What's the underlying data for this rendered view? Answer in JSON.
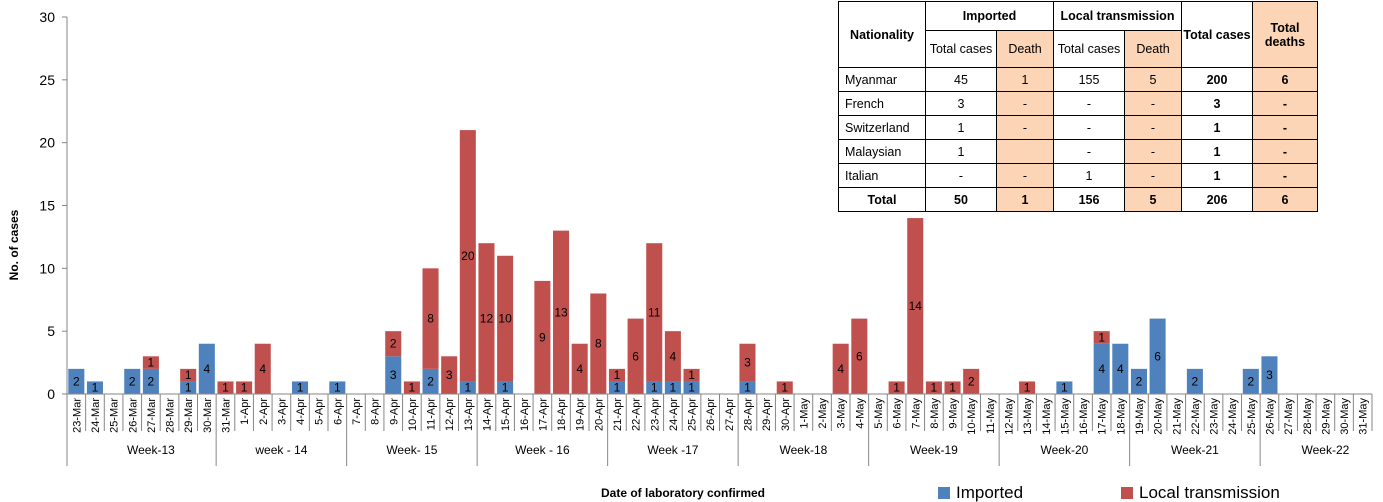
{
  "chart_data": {
    "type": "bar",
    "stacked": true,
    "ylabel": "No. of cases",
    "xlabel": "Date of laboratory confirmed",
    "ylim": [
      0,
      30
    ],
    "yticks": [
      0,
      5,
      10,
      15,
      20,
      25,
      30
    ],
    "grid": false,
    "legend_position": "bottom-right",
    "categories": [
      "23-Mar",
      "24-Mar",
      "25-Mar",
      "26-Mar",
      "27-Mar",
      "28-Mar",
      "29-Mar",
      "30-Mar",
      "31-Mar",
      "1-Apr",
      "2-Apr",
      "3-Apr",
      "4-Apr",
      "5-Apr",
      "6-Apr",
      "7-Apr",
      "8-Apr",
      "9-Apr",
      "10-Apr",
      "11-Apr",
      "12-Apr",
      "13-Apr",
      "14-Apr",
      "15-Apr",
      "16-Apr",
      "17-Apr",
      "18-Apr",
      "19-Apr",
      "20-Apr",
      "21-Apr",
      "22-Apr",
      "23-Apr",
      "24-Apr",
      "25-Apr",
      "26-Apr",
      "27-Apr",
      "28-Apr",
      "29-Apr",
      "30-Apr",
      "1-May",
      "2-May",
      "3-May",
      "4-May",
      "5-May",
      "6-May",
      "7-May",
      "8-May",
      "9-May",
      "10-May",
      "11-May",
      "12-May",
      "13-May",
      "14-May",
      "15-May",
      "16-May",
      "17-May",
      "18-May",
      "19-May",
      "20-May",
      "21-May",
      "22-May",
      "23-May",
      "24-May",
      "25-May",
      "26-May",
      "27-May",
      "28-May",
      "29-May",
      "30-May",
      "31-May"
    ],
    "series": [
      {
        "name": "Imported",
        "color": "#4f81bd",
        "values": [
          2,
          1,
          0,
          2,
          2,
          0,
          1,
          4,
          0,
          0,
          0,
          0,
          1,
          0,
          1,
          0,
          0,
          3,
          0,
          2,
          0,
          1,
          0,
          1,
          0,
          0,
          0,
          0,
          0,
          1,
          0,
          1,
          1,
          1,
          0,
          0,
          1,
          0,
          0,
          0,
          0,
          0,
          0,
          0,
          0,
          0,
          0,
          0,
          0,
          0,
          0,
          0,
          0,
          1,
          0,
          4,
          4,
          2,
          6,
          0,
          2,
          0,
          0,
          2,
          3,
          0,
          0,
          0,
          0,
          0
        ]
      },
      {
        "name": "Local transmission",
        "color": "#c0504d",
        "values": [
          0,
          0,
          0,
          0,
          1,
          0,
          1,
          0,
          1,
          1,
          4,
          0,
          0,
          0,
          0,
          0,
          0,
          2,
          1,
          8,
          3,
          20,
          12,
          10,
          0,
          9,
          13,
          4,
          8,
          1,
          6,
          11,
          4,
          1,
          0,
          0,
          3,
          0,
          1,
          0,
          0,
          4,
          6,
          0,
          1,
          14,
          1,
          1,
          2,
          0,
          0,
          1,
          0,
          0,
          0,
          1,
          0,
          0,
          0,
          0,
          0,
          0,
          0,
          0,
          0,
          0,
          0,
          0,
          0,
          0
        ]
      }
    ],
    "weeks": [
      {
        "label": "Week-13",
        "start": 1,
        "end": 7
      },
      {
        "label": "week - 14",
        "start": 8,
        "end": 14
      },
      {
        "label": "Week- 15",
        "start": 15,
        "end": 21
      },
      {
        "label": "Week - 16",
        "start": 22,
        "end": 28
      },
      {
        "label": "Week -17",
        "start": 29,
        "end": 35
      },
      {
        "label": "Week-18",
        "start": 36,
        "end": 42
      },
      {
        "label": "Week-19",
        "start": 43,
        "end": 49
      },
      {
        "label": "Week-20",
        "start": 50,
        "end": 56
      },
      {
        "label": "Week-21",
        "start": 57,
        "end": 63
      },
      {
        "label": "Week-22",
        "start": 64,
        "end": 70
      }
    ]
  },
  "table": {
    "header": {
      "nationality": "Nationality",
      "imported": "Imported",
      "local": "Local transmission",
      "total_cases": "Total cases",
      "total_deaths": "Total deaths",
      "sub_total_cases": "Total cases",
      "sub_death": "Death"
    },
    "rows": [
      {
        "nat": "Myanmar",
        "imp_cases": "45",
        "imp_death": "1",
        "loc_cases": "155",
        "loc_death": "5",
        "total_cases": "200",
        "total_deaths": "6"
      },
      {
        "nat": "French",
        "imp_cases": "3",
        "imp_death": "-",
        "loc_cases": "-",
        "loc_death": "-",
        "total_cases": "3",
        "total_deaths": "-"
      },
      {
        "nat": "Switzerland",
        "imp_cases": "1",
        "imp_death": "-",
        "loc_cases": "-",
        "loc_death": "-",
        "total_cases": "1",
        "total_deaths": "-"
      },
      {
        "nat": "Malaysian",
        "imp_cases": "1",
        "imp_death": "",
        "loc_cases": "-",
        "loc_death": "-",
        "total_cases": "1",
        "total_deaths": "-"
      },
      {
        "nat": "Italian",
        "imp_cases": "-",
        "imp_death": "-",
        "loc_cases": "1",
        "loc_death": "-",
        "total_cases": "1",
        "total_deaths": "-"
      }
    ],
    "total": {
      "nat": "Total",
      "imp_cases": "50",
      "imp_death": "1",
      "loc_cases": "156",
      "loc_death": "5",
      "total_cases": "206",
      "total_deaths": "6"
    }
  }
}
